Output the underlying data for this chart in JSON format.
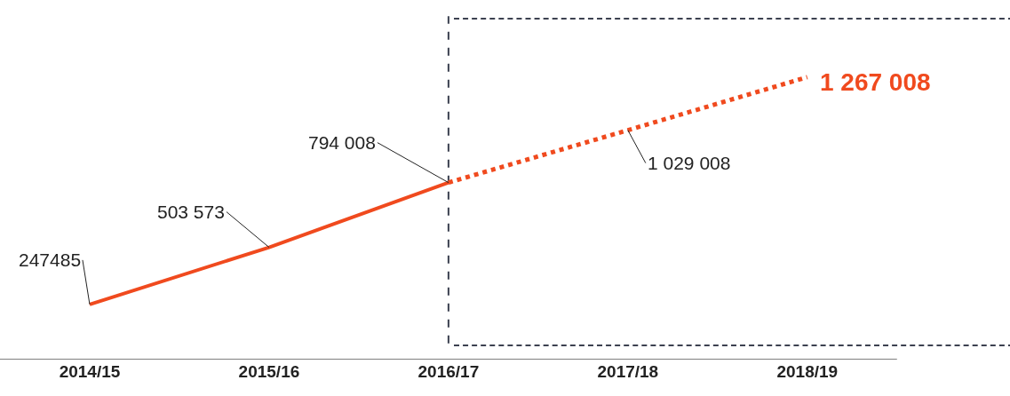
{
  "chart_data": {
    "type": "line",
    "categories": [
      "2014/15",
      "2015/16",
      "2016/17",
      "2017/18",
      "2018/19"
    ],
    "series": [
      {
        "color": "#f04a1e",
        "line_style": "solid",
        "values": [
          247485,
          503573,
          794008,
          null,
          null
        ],
        "value_labels": [
          "247485",
          "503 573",
          "794 008",
          null,
          null
        ]
      },
      {
        "color": "#f04a1e",
        "line_style": "dotted",
        "values": [
          null,
          null,
          794008,
          1029008,
          1267008
        ],
        "value_labels": [
          null,
          null,
          null,
          "1 029 008",
          "1 267 008"
        ]
      }
    ],
    "ref_lines": [
      {
        "axis": "x",
        "value": "2016/17",
        "color": "#3c4150",
        "line_style": "dashed"
      }
    ],
    "grid": false,
    "marker": "none",
    "tick_labels": "x"
  }
}
